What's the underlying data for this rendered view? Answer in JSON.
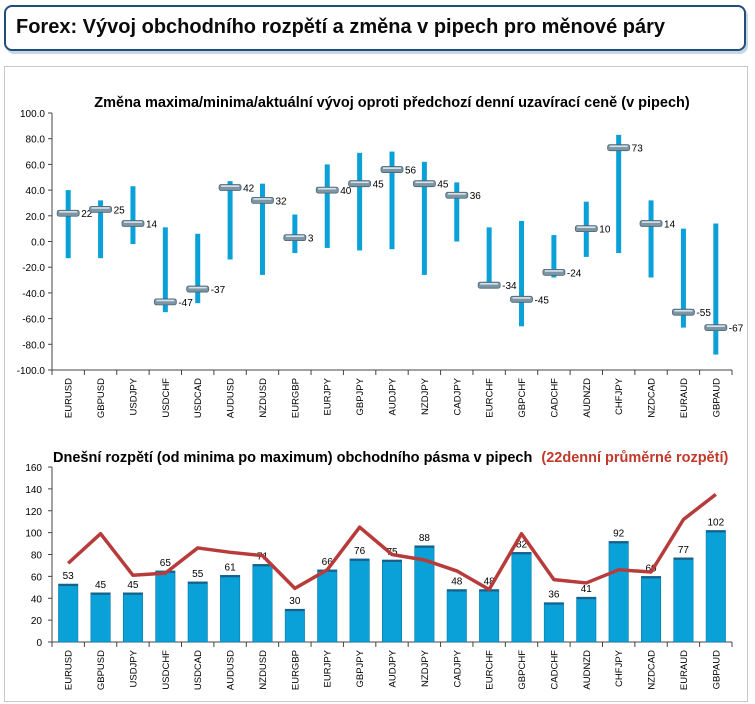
{
  "header": {
    "title": "Forex: Vývoj obchodního rozpětí a změna v pipech pro měnové páry"
  },
  "colors": {
    "bar": "#0aa0d8",
    "marker": "#7c96a6",
    "line": "#b83b3b",
    "title_red": "#c0392b",
    "text": "#000000"
  },
  "chart_data": [
    {
      "type": "range",
      "title": "Změna maxima/minima/aktuální vývoj oproti předchozí denní uzavírací ceně (v pipech)",
      "ylim": [
        -100,
        100
      ],
      "yticks": [
        "100.0",
        "80.0",
        "60.0",
        "40.0",
        "20.0",
        "0.0",
        "-20.0",
        "-40.0",
        "-60.0",
        "-80.0",
        "-100.0"
      ],
      "categories": [
        "EURUSD",
        "GBPUSD",
        "USDJPY",
        "USDCHF",
        "USDCAD",
        "AUDUSD",
        "NZDUSD",
        "EURGBP",
        "EURJPY",
        "GBPJPY",
        "AUDJPY",
        "NZDJPY",
        "CADJPY",
        "EURCHF",
        "GBPCHF",
        "CADCHF",
        "AUDNZD",
        "CHFJPY",
        "NZDCAD",
        "EURAUD",
        "GBPAUD"
      ],
      "high": [
        40,
        32,
        43,
        11,
        6,
        47,
        45,
        21,
        60,
        69,
        70,
        62,
        46,
        11,
        16,
        5,
        31,
        83,
        32,
        10,
        14
      ],
      "low": [
        -13,
        -13,
        -2,
        -55,
        -48,
        -14,
        -26,
        -9,
        -5,
        -7,
        -6,
        -26,
        0,
        -33,
        -66,
        -28,
        -12,
        -9,
        -28,
        -67,
        -88
      ],
      "current": [
        22,
        25,
        14,
        -47,
        -37,
        42,
        32,
        3,
        40,
        45,
        56,
        45,
        36,
        -34,
        -45,
        -24,
        10,
        73,
        14,
        -55,
        -67
      ],
      "labels": [
        "22",
        "25",
        "14",
        "-47",
        "-37",
        "42",
        "32",
        "3",
        "40",
        "45",
        "56",
        "45",
        "36",
        "-34",
        "-45",
        "-24",
        "10",
        "73",
        "14",
        "-55",
        "-67"
      ]
    },
    {
      "type": "bar",
      "title": "Dnešní rozpětí (od minima po maximum) obchodního pásma v pipech",
      "title_highlight": "(22denní průměrné rozpětí)",
      "ylim": [
        0,
        160
      ],
      "yticks": [
        "160",
        "140",
        "120",
        "100",
        "80",
        "60",
        "40",
        "20",
        "0"
      ],
      "categories": [
        "EURUSD",
        "GBPUSD",
        "USDJPY",
        "USDCHF",
        "USDCAD",
        "AUDUSD",
        "NZDUSD",
        "EURGBP",
        "EURJPY",
        "GBPJPY",
        "AUDJPY",
        "NZDJPY",
        "CADJPY",
        "EURCHF",
        "GBPCHF",
        "CADCHF",
        "AUDNZD",
        "CHFJPY",
        "NZDCAD",
        "EURAUD",
        "GBPAUD"
      ],
      "values": [
        53,
        45,
        45,
        65,
        55,
        61,
        71,
        30,
        66,
        76,
        75,
        88,
        48,
        48,
        82,
        36,
        41,
        92,
        60,
        77,
        102
      ],
      "labels": [
        "53",
        "45",
        "45",
        "65",
        "55",
        "61",
        "71",
        "30",
        "66",
        "76",
        "75",
        "88",
        "48",
        "48",
        "82",
        "36",
        "41",
        "92",
        "60",
        "77",
        "102"
      ],
      "line": [
        72,
        99,
        61,
        63,
        86,
        82,
        79,
        49,
        66,
        105,
        80,
        75,
        65,
        48,
        99,
        57,
        54,
        66,
        64,
        112,
        135
      ]
    }
  ]
}
